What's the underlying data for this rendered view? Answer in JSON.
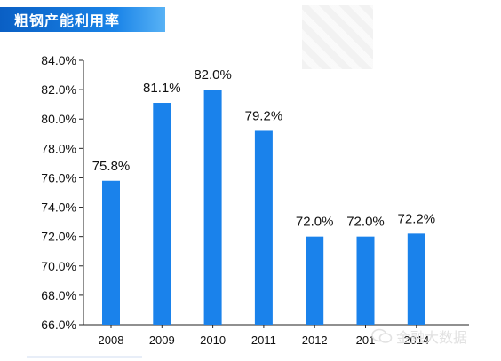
{
  "title": "粗钢产能利用率",
  "watermark_text": "金融大数据",
  "colors": {
    "bar": "#1a82eb",
    "banner": "#0f6fd3"
  },
  "chart_data": {
    "type": "bar",
    "categories": [
      "2008",
      "2009",
      "2010",
      "2011",
      "2012",
      "201",
      "2014"
    ],
    "values": [
      75.8,
      81.1,
      82.0,
      79.2,
      72.0,
      72.0,
      72.2
    ],
    "value_labels": [
      "75.8%",
      "81.1%",
      "82.0%",
      "79.2%",
      "72.0%",
      "72.0%",
      "72.2%"
    ],
    "title": "粗钢产能利用率",
    "xlabel": "",
    "ylabel": "",
    "ylim": [
      66.0,
      84.0
    ],
    "yticks": [
      "66.0%",
      "68.0%",
      "70.0%",
      "72.0%",
      "74.0%",
      "76.0%",
      "78.0%",
      "80.0%",
      "82.0%",
      "84.0%"
    ],
    "grid": false,
    "legend": "none"
  }
}
